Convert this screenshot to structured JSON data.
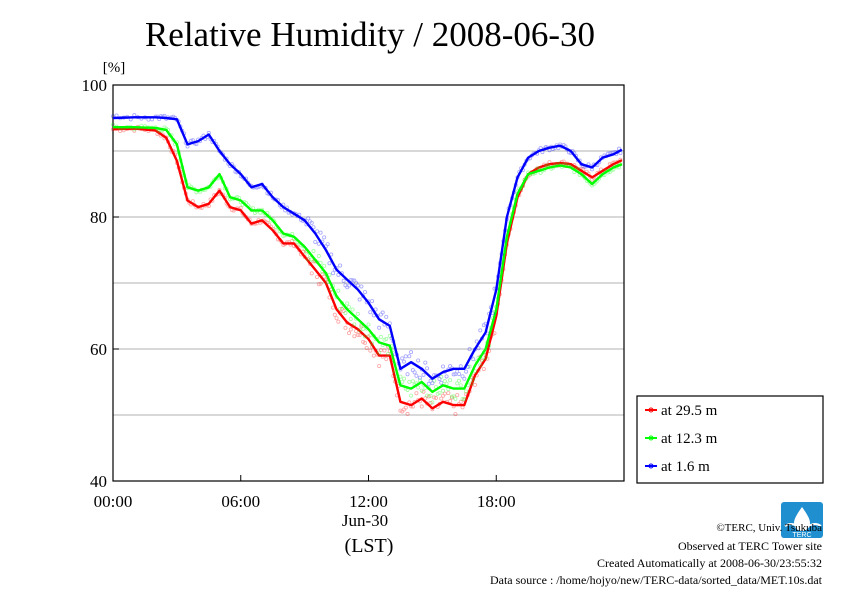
{
  "chart_data": {
    "type": "line",
    "title": "Relative Humidity / 2008-06-30",
    "ylabel": "[%]",
    "xlabel": "(LST)",
    "x_date_label": "Jun-30",
    "ylim": [
      40,
      100
    ],
    "xlim": [
      0,
      24
    ],
    "grid": true,
    "legend_position": "right",
    "yticks": [
      "40",
      "60",
      "80",
      "100"
    ],
    "xticks": [
      "00:00",
      "06:00",
      "12:00",
      "18:00"
    ],
    "x_hours": [
      0,
      1,
      2,
      2.5,
      3,
      3.5,
      4,
      4.5,
      5,
      5.5,
      6,
      6.5,
      7,
      7.5,
      8,
      8.5,
      9,
      9.5,
      10,
      10.5,
      11,
      11.5,
      12,
      12.5,
      13,
      13.5,
      14,
      14.5,
      15,
      15.5,
      16,
      16.5,
      17,
      17.5,
      18,
      18.5,
      19,
      19.5,
      20,
      20.5,
      21,
      21.5,
      22,
      22.5,
      23,
      23.5,
      23.9
    ],
    "series": [
      {
        "name": "at 29.5 m",
        "color": "#ff0000",
        "values": [
          93.3,
          93.4,
          93.1,
          92.0,
          88.5,
          82.5,
          81.5,
          82.0,
          84.0,
          81.5,
          81.0,
          79.0,
          79.5,
          78.0,
          76.0,
          76.0,
          74.0,
          72.0,
          70.0,
          66.0,
          64.0,
          63.0,
          61.5,
          59.0,
          59.0,
          52.0,
          51.5,
          52.5,
          51.0,
          52.0,
          51.5,
          51.5,
          56.0,
          58.5,
          65.0,
          76.0,
          83.0,
          86.5,
          87.5,
          88.0,
          88.2,
          88.0,
          87.0,
          86.0,
          87.0,
          88.0,
          88.6
        ]
      },
      {
        "name": "at 12.3 m",
        "color": "#00ff00",
        "values": [
          93.6,
          93.6,
          93.5,
          93.2,
          91.0,
          84.5,
          84.0,
          84.5,
          86.5,
          83.0,
          82.5,
          81.0,
          81.0,
          79.5,
          77.5,
          77.0,
          75.5,
          73.5,
          71.5,
          68.0,
          66.0,
          64.5,
          63.0,
          61.0,
          60.5,
          54.5,
          54.0,
          55.0,
          53.5,
          54.5,
          54.0,
          54.0,
          57.5,
          60.0,
          66.0,
          77.0,
          83.5,
          86.5,
          87.0,
          87.5,
          87.8,
          87.5,
          86.5,
          85.0,
          86.5,
          87.5,
          88.0
        ]
      },
      {
        "name": "at 1.6 m",
        "color": "#0000ff",
        "values": [
          95.0,
          95.1,
          95.1,
          95.0,
          94.8,
          91.0,
          91.5,
          92.5,
          90.0,
          88.0,
          86.5,
          84.5,
          85.0,
          83.0,
          81.5,
          80.5,
          79.5,
          77.5,
          75.0,
          72.0,
          70.5,
          69.0,
          67.0,
          64.5,
          63.5,
          57.0,
          58.0,
          57.0,
          55.5,
          56.5,
          57.0,
          57.0,
          60.0,
          62.5,
          69.0,
          80.0,
          86.0,
          89.0,
          90.0,
          90.5,
          90.8,
          90.0,
          88.0,
          87.5,
          89.0,
          89.5,
          90.2
        ]
      }
    ]
  },
  "credits": {
    "copyright": "©TERC, Univ. Tsukuba",
    "observed": "Observed at TERC Tower site",
    "created": "Created Automatically at 2008-06-30/23:55:32",
    "source": "Data source : /home/hojyo/new/TERC-data/sorted_data/MET.10s.dat"
  },
  "logo": {
    "text": "TERC",
    "color": "#1f8fd0"
  }
}
